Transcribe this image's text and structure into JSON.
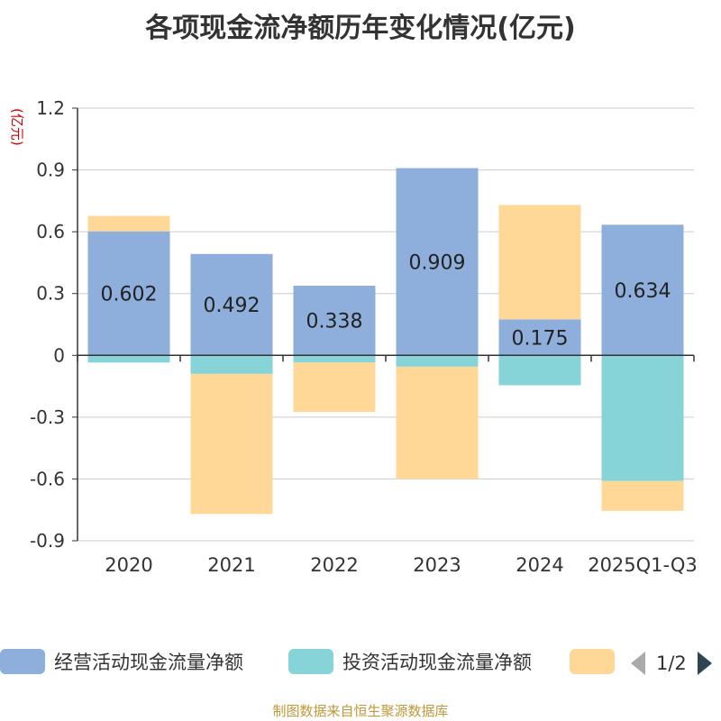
{
  "chart_data": {
    "type": "bar",
    "stacked": true,
    "title": "各项现金流净额历年变化情况(亿元)",
    "ylabel": "(亿元)",
    "categories": [
      "2020",
      "2021",
      "2022",
      "2023",
      "2024",
      "2025Q1-Q3"
    ],
    "ylim": [
      -0.9,
      1.2
    ],
    "yticks": [
      1.2,
      0.9,
      0.6,
      0.3,
      0,
      -0.3,
      -0.6,
      -0.9
    ],
    "ytick_labels": [
      "1.2",
      "0.9",
      "0.6",
      "0.3",
      "0",
      "-0.3",
      "-0.6",
      "-0.9"
    ],
    "series": [
      {
        "name": "经营活动现金流量净额",
        "color": "#8eaedb",
        "values": [
          0.602,
          0.492,
          0.338,
          0.909,
          0.175,
          0.634
        ],
        "labels": [
          "0.602",
          "0.492",
          "0.338",
          "0.909",
          "0.175",
          "0.634"
        ]
      },
      {
        "name": "投资活动现金流量净额",
        "color": "#86d4d7",
        "values": [
          -0.035,
          -0.09,
          -0.035,
          -0.055,
          -0.145,
          -0.61
        ]
      },
      {
        "name": "",
        "color": "#ffd897",
        "values": [
          0.075,
          -0.68,
          -0.24,
          -0.545,
          0.555,
          -0.145
        ]
      }
    ],
    "grid": true,
    "legend_position": "bottom"
  },
  "legend": {
    "items": [
      {
        "label": "经营活动现金流量净额",
        "color": "#8eaedb"
      },
      {
        "label": "投资活动现金流量净额",
        "color": "#86d4d7"
      },
      {
        "label": "",
        "color": "#ffd897"
      }
    ],
    "page_indicator": "1/2"
  },
  "source": "制图数据来自恒生聚源数据库"
}
